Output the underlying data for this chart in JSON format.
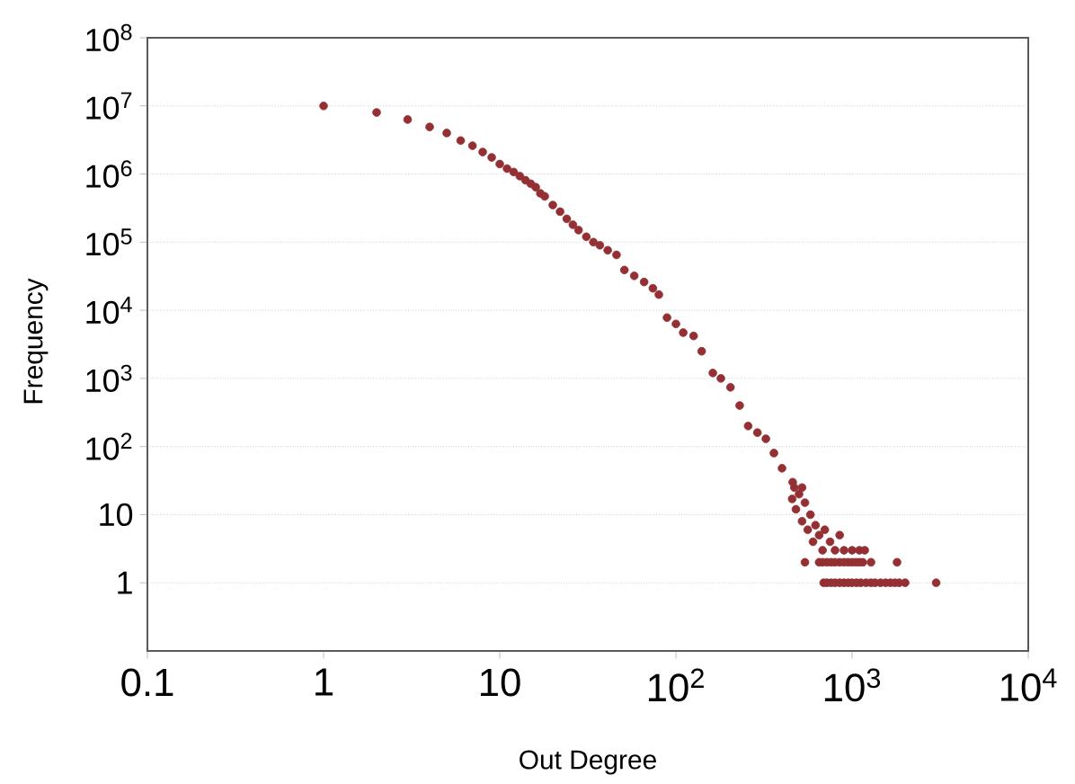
{
  "chart_data": {
    "type": "scatter",
    "xlabel": "Out Degree",
    "ylabel": "Frequency",
    "log": "xy",
    "grid": "y",
    "marker": "circle",
    "xlim": [
      0.1,
      10000
    ],
    "ylim": [
      0.1,
      100000000
    ],
    "xticks": [
      0.1,
      1,
      10,
      {
        "value": 100,
        "label": "10$^{2}$"
      },
      {
        "value": 1000,
        "label": "10$^{3}$"
      },
      {
        "value": 10000,
        "label": "10$^{4}$"
      }
    ],
    "yticks": [
      1,
      10,
      {
        "value": 100,
        "label": "10$^{2}$"
      },
      {
        "value": 1000,
        "label": "10$^{3}$"
      },
      {
        "value": 10000,
        "label": "10$^{4}$"
      },
      {
        "value": 100000,
        "label": "10$^{5}$"
      },
      {
        "value": 1000000,
        "label": "10$^{6}$"
      },
      {
        "value": 10000000,
        "label": "10$^{7}$"
      },
      {
        "value": 100000000,
        "label": "10$^{8}$"
      }
    ],
    "series": [
      {
        "color": "#943034",
        "x": [
          1,
          2,
          3,
          4,
          5,
          6,
          7,
          8,
          9,
          10,
          11,
          12,
          13,
          14,
          15,
          16,
          17,
          18,
          20,
          22,
          24,
          26,
          28,
          31,
          34,
          37,
          41,
          46,
          51,
          58,
          66,
          74,
          80,
          89,
          100,
          110,
          126,
          140,
          162,
          180,
          204,
          230,
          257,
          290,
          324,
          360,
          400,
          457,
          460,
          470,
          480,
          500,
          520,
          520,
          540,
          560,
          580,
          600,
          620,
          650,
          680,
          700,
          750,
          800,
          850,
          900,
          1000,
          1100,
          1180,
          540,
          650,
          680,
          720,
          760,
          800,
          850,
          900,
          950,
          1000,
          1050,
          1100,
          1150,
          1280,
          1800,
          690,
          720,
          760,
          800,
          850,
          900,
          950,
          1000,
          1060,
          1120,
          1200,
          1280,
          1350,
          1450,
          1550,
          1650,
          1750,
          1850,
          2000,
          3000
        ],
        "values": [
          10000000,
          8000000,
          6300000,
          4900000,
          4000000,
          3100000,
          2600000,
          2100000,
          1750000,
          1400000,
          1200000,
          1070000,
          930000,
          810000,
          720000,
          640000,
          520000,
          470000,
          350000,
          280000,
          220000,
          180000,
          150000,
          120000,
          100000,
          90000,
          76000,
          65000,
          39000,
          32000,
          26000,
          21000,
          17000,
          7800,
          6300,
          4700,
          4200,
          2500,
          1200,
          1000,
          740,
          400,
          200,
          160,
          130,
          80,
          48,
          17,
          30,
          25,
          12,
          20,
          8,
          25,
          15,
          6,
          10,
          4,
          7,
          5,
          3,
          6,
          4,
          3,
          5,
          3,
          3,
          3,
          3,
          2,
          2,
          2,
          2,
          2,
          2,
          2,
          2,
          2,
          2,
          2,
          2,
          2,
          2,
          2,
          1,
          1,
          1,
          1,
          1,
          1,
          1,
          1,
          1,
          1,
          1,
          1,
          1,
          1,
          1,
          1,
          1,
          1,
          1,
          1
        ]
      }
    ]
  }
}
